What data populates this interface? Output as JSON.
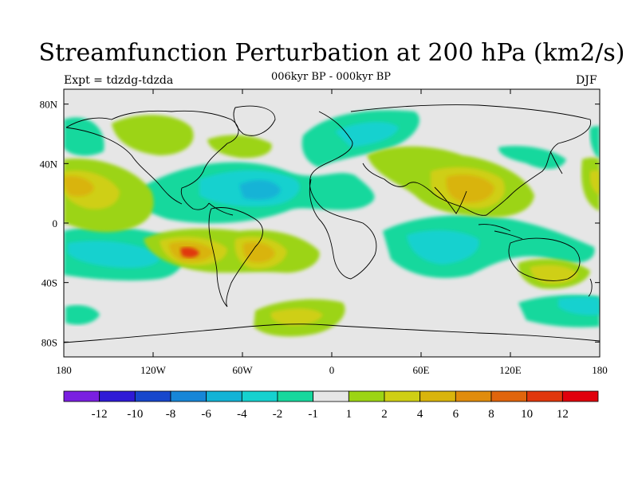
{
  "title": "Streamfunction Perturbation at 200 hPa (km2/s)",
  "subtitle": "006kyr BP - 000kyr BP",
  "experiment": "Expt = tdzdg-tdzda",
  "season": "DJF",
  "map": {
    "projection": "cylindrical equidistant",
    "lon_range": [
      -180,
      180
    ],
    "lat_range": [
      -90,
      90
    ],
    "lon_ticks": [
      "180",
      "120W",
      "60W",
      "0",
      "60E",
      "120E",
      "180"
    ],
    "lat_ticks": [
      "80N",
      "40N",
      "0",
      "40S",
      "80S"
    ],
    "background_color": "#e6e6e6",
    "coastline_color": "#000000"
  },
  "colorbar": {
    "colors": [
      "#7a1fe0",
      "#2f1ad6",
      "#1747cc",
      "#1786d7",
      "#13b3d6",
      "#16d1cf",
      "#17d89d",
      "#e6e6e6",
      "#9cd414",
      "#cfcf14",
      "#d9b40c",
      "#e08c0c",
      "#e0650c",
      "#e0370c",
      "#e0000c"
    ],
    "labels": [
      "-12",
      "-10",
      "-8",
      "-6",
      "-4",
      "-2",
      "-1",
      "1",
      "2",
      "4",
      "6",
      "8",
      "10",
      "12"
    ]
  },
  "features": [
    {
      "label": "positive",
      "level": "4",
      "region": "N Pacific 20-40N 180E"
    },
    {
      "label": "positive",
      "level": "8",
      "region": "S Pacific 30S 100W"
    },
    {
      "label": "positive",
      "level": "6",
      "region": "S Atlantic 25S 50W"
    },
    {
      "label": "positive",
      "level": "4",
      "region": "Tibet / S Asia 30N 90E"
    },
    {
      "label": "positive",
      "level": "4",
      "region": "Australia 30S 140E"
    },
    {
      "label": "positive",
      "level": "2",
      "region": "Southern Ocean 60S 30W"
    },
    {
      "label": "negative",
      "level": "-4",
      "region": "Tropical N Atlantic 20N 50W"
    },
    {
      "label": "negative",
      "level": "-4",
      "region": "S Pacific 20S 160W"
    },
    {
      "label": "negative",
      "level": "-4",
      "region": "Indian Ocean 20S 70E"
    },
    {
      "label": "negative",
      "level": "-2",
      "region": "N Atlantic / Europe 60N 10E"
    }
  ]
}
